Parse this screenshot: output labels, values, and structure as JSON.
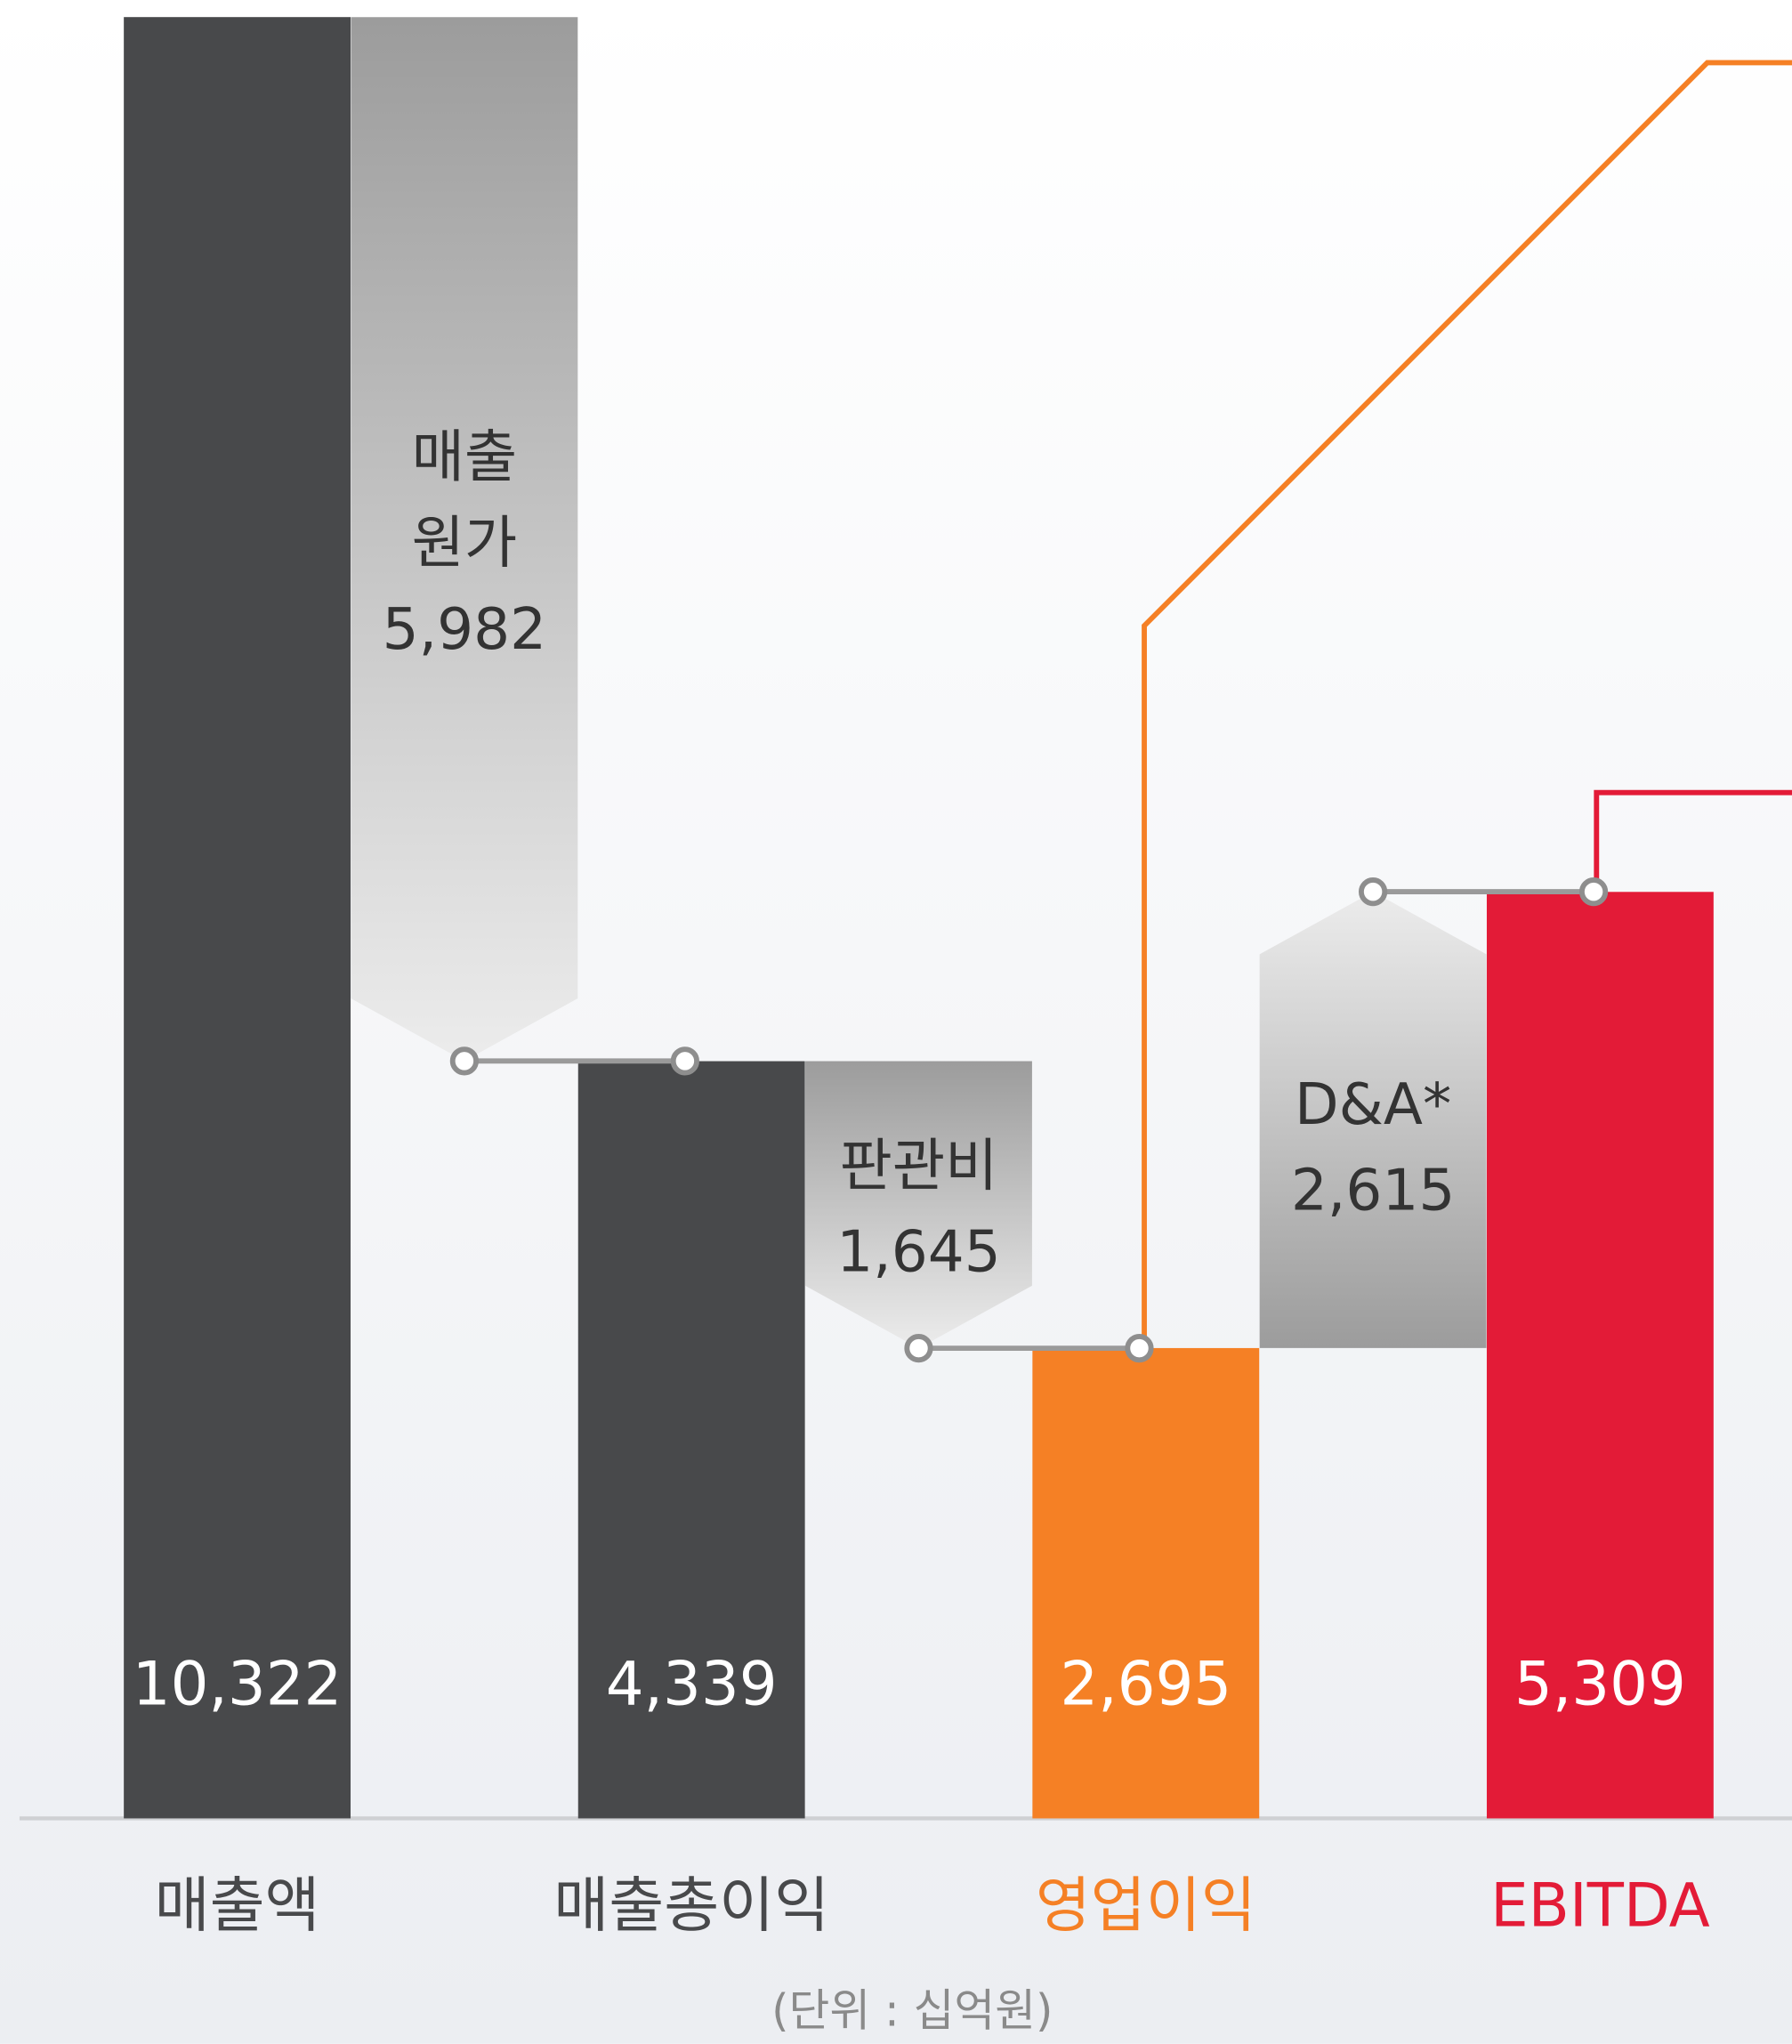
{
  "chart_data": {
    "type": "waterfall",
    "categories": [
      "매출액",
      "매출총이익",
      "영업이익",
      "EBITDA"
    ],
    "values": [
      10322,
      4339,
      2695,
      5309
    ],
    "value_labels": [
      "10,322",
      "4,339",
      "2,695",
      "5,309"
    ],
    "colors": [
      "#48494b",
      "#48494b",
      "#f58025",
      "#e31b37"
    ],
    "changes": [
      {
        "label": [
          "매출",
          "원가"
        ],
        "value": 5982,
        "value_label": "5,982"
      },
      {
        "label": [
          "판관비"
        ],
        "value": 1645,
        "value_label": "1,645"
      },
      {
        "label": [
          "D&A*"
        ],
        "value": 2615,
        "value_label": "2,615"
      }
    ],
    "ylim": [
      0,
      10322
    ],
    "note": "(단위 : 십억원)"
  }
}
